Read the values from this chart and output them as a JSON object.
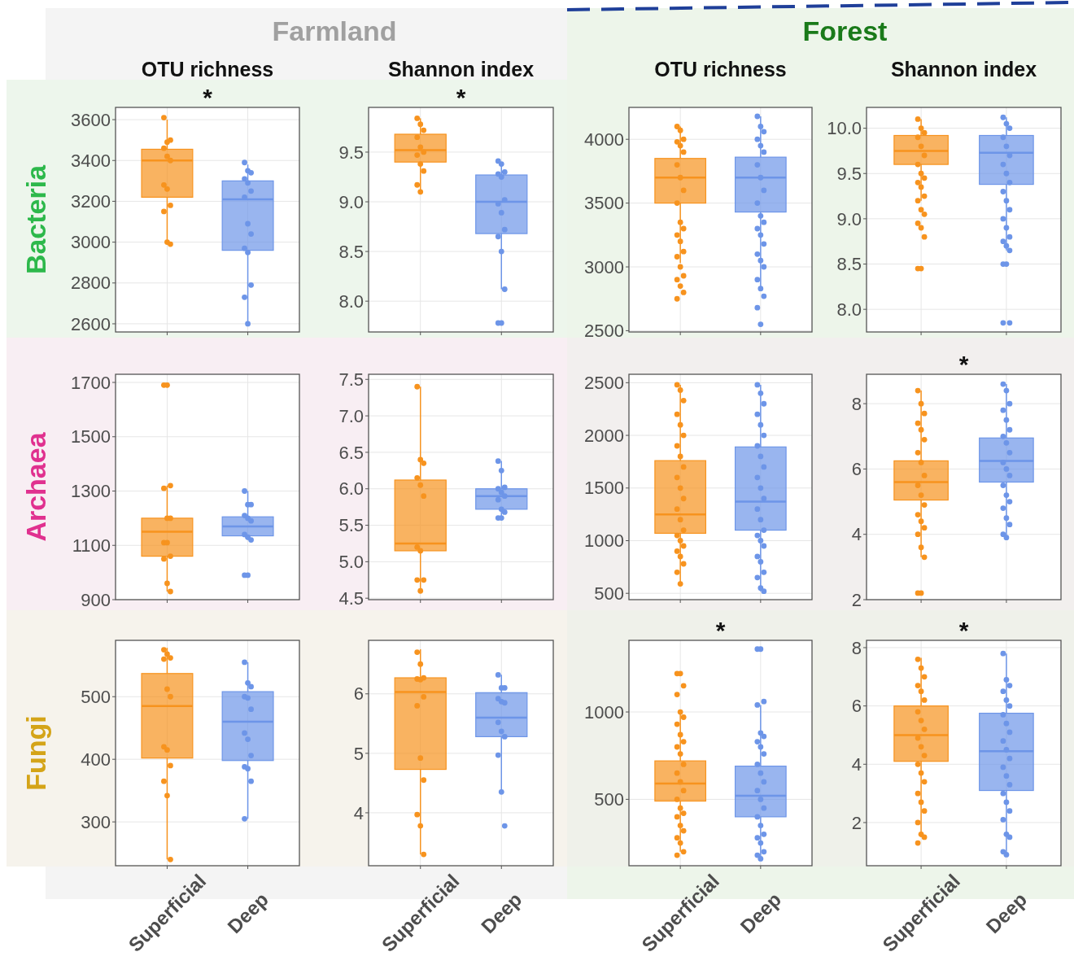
{
  "chart_data": [
    {
      "type": "box",
      "title": "OTU richness",
      "subtitle": "Farmland",
      "ylabel": "Bacteria",
      "categories": [
        "Superficial",
        "Deep"
      ],
      "ylim": [
        2560,
        3660
      ],
      "yticks": [
        2600,
        2800,
        3000,
        3200,
        3400,
        3600
      ],
      "grid": true,
      "tick_labels": "y",
      "annotations": [
        "*"
      ],
      "colors": [
        "#f7931e",
        "#6d95e8"
      ],
      "boxes": [
        {
          "low": 2990,
          "q1": 3220,
          "median": 3400,
          "q3": 3455,
          "high": 3600
        },
        {
          "low": 2600,
          "q1": 2960,
          "median": 3210,
          "q3": 3300,
          "high": 3380
        }
      ],
      "series": [
        {
          "type": "scatter",
          "color": "#f7931e",
          "x": [
            "Superficial",
            "Superficial",
            "Superficial",
            "Superficial",
            "Superficial",
            "Superficial",
            "Superficial",
            "Superficial",
            "Superficial",
            "Superficial",
            "Superficial",
            "Superficial"
          ],
          "values": [
            3610,
            3490,
            3500,
            3460,
            3420,
            3400,
            3280,
            3260,
            3180,
            3150,
            3000,
            2990
          ]
        },
        {
          "type": "scatter",
          "color": "#6d95e8",
          "x": [
            "Deep",
            "Deep",
            "Deep",
            "Deep",
            "Deep",
            "Deep",
            "Deep",
            "Deep",
            "Deep",
            "Deep",
            "Deep",
            "Deep",
            "Deep",
            "Deep"
          ],
          "values": [
            3390,
            3350,
            3340,
            3310,
            3290,
            3250,
            3220,
            3090,
            3040,
            2970,
            2950,
            2790,
            2730,
            2600
          ]
        }
      ]
    },
    {
      "type": "box",
      "title": "Shannon index",
      "categories": [
        "Superficial",
        "Deep"
      ],
      "ylim": [
        7.69,
        9.95
      ],
      "yticks": [
        {
          "value": 8,
          "label": "8.0"
        },
        8.5,
        {
          "value": 9,
          "label": "9.0"
        },
        9.5
      ],
      "grid": true,
      "tick_labels": "y",
      "annotations": [
        "*"
      ],
      "colors": [
        "#f7931e",
        "#6d95e8"
      ],
      "boxes": [
        {
          "low": 9.1,
          "q1": 9.4,
          "median": 9.52,
          "q3": 9.68,
          "high": 9.84
        },
        {
          "low": 8.12,
          "q1": 8.68,
          "median": 9.0,
          "q3": 9.27,
          "high": 9.38
        }
      ],
      "series": [
        {
          "type": "scatter",
          "color": "#f7931e",
          "x": [
            "Superficial",
            "Superficial",
            "Superficial",
            "Superficial",
            "Superficial",
            "Superficial",
            "Superficial",
            "Superficial",
            "Superficial",
            "Superficial",
            "Superficial"
          ],
          "values": [
            9.84,
            9.78,
            9.72,
            9.65,
            9.55,
            9.5,
            9.47,
            9.38,
            9.31,
            9.17,
            9.1
          ]
        },
        {
          "type": "scatter",
          "color": "#6d95e8",
          "x": [
            "Deep",
            "Deep",
            "Deep",
            "Deep",
            "Deep",
            "Deep",
            "Deep",
            "Deep",
            "Deep",
            "Deep",
            "Deep",
            "Deep",
            "Deep",
            "Deep"
          ],
          "values": [
            9.41,
            9.38,
            9.3,
            9.28,
            9.25,
            9.02,
            8.98,
            8.89,
            8.72,
            8.65,
            8.5,
            8.12,
            7.78,
            7.78
          ]
        }
      ]
    },
    {
      "type": "box",
      "title": "OTU richness",
      "subtitle": "Forest",
      "categories": [
        "Superficial",
        "Deep"
      ],
      "ylim": [
        2490,
        4250
      ],
      "yticks": [
        2500,
        3000,
        3500,
        4000
      ],
      "grid": true,
      "tick_labels": "y",
      "colors": [
        "#f7931e",
        "#6d95e8"
      ],
      "boxes": [
        {
          "low": 3030,
          "q1": 3500,
          "median": 3700,
          "q3": 3850,
          "high": 4100
        },
        {
          "low": 2830,
          "q1": 3430,
          "median": 3700,
          "q3": 3860,
          "high": 4180
        }
      ],
      "series": [
        {
          "type": "scatter",
          "color": "#f7931e",
          "x": [
            "Superficial",
            "Superficial",
            "Superficial",
            "Superficial",
            "Superficial",
            "Superficial",
            "Superficial",
            "Superficial",
            "Superficial",
            "Superficial",
            "Superficial",
            "Superficial",
            "Superficial",
            "Superficial",
            "Superficial",
            "Superficial",
            "Superficial",
            "Superficial",
            "Superficial",
            "Superficial",
            "Superficial",
            "Superficial"
          ],
          "values": [
            4100,
            4070,
            4000,
            3980,
            3950,
            3900,
            3800,
            3700,
            3600,
            3500,
            3350,
            3300,
            3250,
            3200,
            3120,
            3080,
            3000,
            2930,
            2900,
            2850,
            2800,
            2750
          ]
        },
        {
          "type": "scatter",
          "color": "#6d95e8",
          "x": [
            "Deep",
            "Deep",
            "Deep",
            "Deep",
            "Deep",
            "Deep",
            "Deep",
            "Deep",
            "Deep",
            "Deep",
            "Deep",
            "Deep",
            "Deep",
            "Deep",
            "Deep",
            "Deep",
            "Deep",
            "Deep",
            "Deep",
            "Deep",
            "Deep",
            "Deep",
            "Deep"
          ],
          "values": [
            4180,
            4100,
            4060,
            4000,
            3950,
            3900,
            3800,
            3700,
            3600,
            3500,
            3400,
            3350,
            3300,
            3250,
            3180,
            3100,
            3050,
            3000,
            2900,
            2830,
            2770,
            2680,
            2550
          ]
        }
      ]
    },
    {
      "type": "box",
      "title": "Shannon index",
      "categories": [
        "Superficial",
        "Deep"
      ],
      "ylim": [
        7.75,
        10.23
      ],
      "yticks": [
        {
          "value": 8,
          "label": "8.0"
        },
        8.5,
        {
          "value": 9,
          "label": "9.0"
        },
        9.5,
        {
          "value": 10,
          "label": "10.0"
        }
      ],
      "grid": true,
      "tick_labels": "y",
      "colors": [
        "#f7931e",
        "#6d95e8"
      ],
      "boxes": [
        {
          "low": 9.2,
          "q1": 9.6,
          "median": 9.75,
          "q3": 9.92,
          "high": 10.1
        },
        {
          "low": 8.65,
          "q1": 9.38,
          "median": 9.73,
          "q3": 9.92,
          "high": 10.12
        }
      ],
      "series": [
        {
          "type": "scatter",
          "color": "#f7931e",
          "x": [
            "Superficial",
            "Superficial",
            "Superficial",
            "Superficial",
            "Superficial",
            "Superficial",
            "Superficial",
            "Superficial",
            "Superficial",
            "Superficial",
            "Superficial",
            "Superficial",
            "Superficial",
            "Superficial",
            "Superficial",
            "Superficial",
            "Superficial",
            "Superficial",
            "Superficial",
            "Superficial"
          ],
          "values": [
            10.1,
            10.0,
            9.95,
            9.9,
            9.8,
            9.7,
            9.6,
            9.5,
            9.45,
            9.4,
            9.35,
            9.25,
            9.2,
            9.1,
            9.05,
            8.95,
            8.9,
            8.8,
            8.45,
            8.45
          ]
        },
        {
          "type": "scatter",
          "color": "#6d95e8",
          "x": [
            "Deep",
            "Deep",
            "Deep",
            "Deep",
            "Deep",
            "Deep",
            "Deep",
            "Deep",
            "Deep",
            "Deep",
            "Deep",
            "Deep",
            "Deep",
            "Deep",
            "Deep",
            "Deep",
            "Deep",
            "Deep",
            "Deep",
            "Deep",
            "Deep",
            "Deep"
          ],
          "values": [
            10.12,
            10.05,
            10.0,
            9.9,
            9.8,
            9.7,
            9.6,
            9.5,
            9.4,
            9.3,
            9.2,
            9.1,
            9.0,
            8.9,
            8.8,
            8.75,
            8.7,
            8.65,
            8.5,
            8.5,
            7.85,
            7.85
          ]
        }
      ]
    },
    {
      "type": "box",
      "ylabel": "Archaea",
      "categories": [
        "Superficial",
        "Deep"
      ],
      "ylim": [
        900,
        1730
      ],
      "yticks": [
        900,
        1100,
        1300,
        1500,
        1700
      ],
      "grid": true,
      "tick_labels": "y",
      "colors": [
        "#f7931e",
        "#6d95e8"
      ],
      "boxes": [
        {
          "low": 930,
          "q1": 1060,
          "median": 1150,
          "q3": 1200,
          "high": 1320
        },
        {
          "low": 1120,
          "q1": 1135,
          "median": 1170,
          "q3": 1205,
          "high": 1300
        }
      ],
      "series": [
        {
          "type": "scatter",
          "color": "#f7931e",
          "x": [
            "Superficial",
            "Superficial",
            "Superficial",
            "Superficial",
            "Superficial",
            "Superficial",
            "Superficial",
            "Superficial",
            "Superficial",
            "Superficial",
            "Superficial",
            "Superficial"
          ],
          "values": [
            1690,
            1690,
            1320,
            1310,
            1200,
            1200,
            1110,
            1110,
            1060,
            1050,
            960,
            930
          ]
        },
        {
          "type": "scatter",
          "color": "#6d95e8",
          "x": [
            "Deep",
            "Deep",
            "Deep",
            "Deep",
            "Deep",
            "Deep",
            "Deep",
            "Deep",
            "Deep",
            "Deep",
            "Deep"
          ],
          "values": [
            1300,
            1250,
            1250,
            1210,
            1200,
            1190,
            1140,
            1130,
            1120,
            990,
            990
          ]
        }
      ]
    },
    {
      "type": "box",
      "categories": [
        "Superficial",
        "Deep"
      ],
      "ylim": [
        4.48,
        7.57
      ],
      "yticks": [
        4.5,
        {
          "value": 5,
          "label": "5.0"
        },
        5.5,
        {
          "value": 6,
          "label": "6.0"
        },
        6.5,
        {
          "value": 7,
          "label": "7.0"
        },
        7.5
      ],
      "grid": true,
      "tick_labels": "y",
      "colors": [
        "#f7931e",
        "#6d95e8"
      ],
      "boxes": [
        {
          "low": 4.6,
          "q1": 5.15,
          "median": 5.25,
          "q3": 6.12,
          "high": 7.4
        },
        {
          "low": 5.6,
          "q1": 5.72,
          "median": 5.9,
          "q3": 6.0,
          "high": 6.38
        }
      ],
      "series": [
        {
          "type": "scatter",
          "color": "#f7931e",
          "x": [
            "Superficial",
            "Superficial",
            "Superficial",
            "Superficial",
            "Superficial",
            "Superficial",
            "Superficial",
            "Superficial",
            "Superficial",
            "Superficial",
            "Superficial"
          ],
          "values": [
            7.4,
            6.4,
            6.35,
            6.15,
            6.05,
            5.9,
            5.2,
            5.15,
            4.75,
            4.75,
            4.6
          ]
        },
        {
          "type": "scatter",
          "color": "#6d95e8",
          "x": [
            "Deep",
            "Deep",
            "Deep",
            "Deep",
            "Deep",
            "Deep",
            "Deep",
            "Deep",
            "Deep",
            "Deep",
            "Deep"
          ],
          "values": [
            6.38,
            6.25,
            6.02,
            6.0,
            5.95,
            5.9,
            5.85,
            5.72,
            5.68,
            5.6,
            5.6
          ]
        }
      ]
    },
    {
      "type": "box",
      "categories": [
        "Superficial",
        "Deep"
      ],
      "ylim": [
        440,
        2580
      ],
      "yticks": [
        500,
        1000,
        1500,
        2000,
        2500
      ],
      "grid": true,
      "tick_labels": "y",
      "colors": [
        "#f7931e",
        "#6d95e8"
      ],
      "boxes": [
        {
          "low": 590,
          "q1": 1070,
          "median": 1250,
          "q3": 1760,
          "high": 2480
        },
        {
          "low": 520,
          "q1": 1100,
          "median": 1370,
          "q3": 1890,
          "high": 2480
        }
      ],
      "series": [
        {
          "type": "scatter",
          "color": "#f7931e",
          "x": [
            "Superficial",
            "Superficial",
            "Superficial",
            "Superficial",
            "Superficial",
            "Superficial",
            "Superficial",
            "Superficial",
            "Superficial",
            "Superficial",
            "Superficial",
            "Superficial",
            "Superficial",
            "Superficial",
            "Superficial",
            "Superficial",
            "Superficial",
            "Superficial",
            "Superficial",
            "Superficial",
            "Superficial",
            "Superficial",
            "Superficial"
          ],
          "values": [
            2480,
            2430,
            2330,
            2200,
            2100,
            2000,
            1900,
            1800,
            1700,
            1600,
            1500,
            1400,
            1300,
            1200,
            1100,
            1050,
            1000,
            950,
            900,
            850,
            780,
            700,
            590
          ]
        },
        {
          "type": "scatter",
          "color": "#6d95e8",
          "x": [
            "Deep",
            "Deep",
            "Deep",
            "Deep",
            "Deep",
            "Deep",
            "Deep",
            "Deep",
            "Deep",
            "Deep",
            "Deep",
            "Deep",
            "Deep",
            "Deep",
            "Deep",
            "Deep",
            "Deep",
            "Deep",
            "Deep",
            "Deep",
            "Deep",
            "Deep",
            "Deep",
            "Deep"
          ],
          "values": [
            2480,
            2400,
            2300,
            2200,
            2100,
            2000,
            1900,
            1800,
            1700,
            1600,
            1500,
            1400,
            1300,
            1200,
            1100,
            1050,
            1000,
            950,
            850,
            800,
            700,
            650,
            550,
            520
          ]
        }
      ]
    },
    {
      "type": "box",
      "categories": [
        "Superficial",
        "Deep"
      ],
      "ylim": [
        2,
        8.9
      ],
      "yticks": [
        2,
        4,
        6,
        8
      ],
      "grid": true,
      "tick_labels": "y",
      "annotations": [
        "*"
      ],
      "colors": [
        "#f7931e",
        "#6d95e8"
      ],
      "boxes": [
        {
          "low": 3.3,
          "q1": 5.05,
          "median": 5.6,
          "q3": 6.25,
          "high": 8.4
        },
        {
          "low": 3.9,
          "q1": 5.6,
          "median": 6.25,
          "q3": 6.95,
          "high": 8.6
        }
      ],
      "series": [
        {
          "type": "scatter",
          "color": "#f7931e",
          "x": [
            "Superficial",
            "Superficial",
            "Superficial",
            "Superficial",
            "Superficial",
            "Superficial",
            "Superficial",
            "Superficial",
            "Superficial",
            "Superficial",
            "Superficial",
            "Superficial",
            "Superficial",
            "Superficial",
            "Superficial",
            "Superficial",
            "Superficial",
            "Superficial",
            "Superficial",
            "Superficial"
          ],
          "values": [
            8.4,
            8.0,
            7.7,
            7.4,
            7.2,
            6.9,
            6.5,
            6.2,
            5.8,
            5.5,
            5.2,
            4.9,
            4.6,
            4.4,
            4.2,
            4.0,
            3.6,
            3.3,
            2.2,
            2.2
          ]
        },
        {
          "type": "scatter",
          "color": "#6d95e8",
          "x": [
            "Deep",
            "Deep",
            "Deep",
            "Deep",
            "Deep",
            "Deep",
            "Deep",
            "Deep",
            "Deep",
            "Deep",
            "Deep",
            "Deep",
            "Deep",
            "Deep",
            "Deep",
            "Deep",
            "Deep",
            "Deep",
            "Deep",
            "Deep"
          ],
          "values": [
            8.6,
            8.4,
            8.0,
            7.8,
            7.5,
            7.2,
            7.0,
            6.8,
            6.5,
            6.2,
            6.0,
            5.8,
            5.5,
            5.2,
            5.0,
            4.8,
            4.5,
            4.3,
            4.0,
            3.9
          ]
        }
      ]
    },
    {
      "type": "box",
      "ylabel": "Fungi",
      "categories": [
        "Superficial",
        "Deep"
      ],
      "ylim": [
        230,
        590
      ],
      "yticks": [
        300,
        400,
        500
      ],
      "grid": true,
      "colors": [
        "#f7931e",
        "#6d95e8"
      ],
      "boxes": [
        {
          "low": 240,
          "q1": 402,
          "median": 485,
          "q3": 537,
          "high": 578
        },
        {
          "low": 305,
          "q1": 398,
          "median": 460,
          "q3": 508,
          "high": 555
        }
      ],
      "series": [
        {
          "type": "scatter",
          "color": "#f7931e",
          "x": [
            "Superficial",
            "Superficial",
            "Superficial",
            "Superficial",
            "Superficial",
            "Superficial",
            "Superficial",
            "Superficial",
            "Superficial",
            "Superficial",
            "Superficial",
            "Superficial"
          ],
          "values": [
            575,
            568,
            562,
            560,
            512,
            500,
            420,
            415,
            390,
            365,
            342,
            240
          ]
        },
        {
          "type": "scatter",
          "color": "#6d95e8",
          "x": [
            "Deep",
            "Deep",
            "Deep",
            "Deep",
            "Deep",
            "Deep",
            "Deep",
            "Deep",
            "Deep",
            "Deep",
            "Deep",
            "Deep",
            "Deep"
          ],
          "values": [
            555,
            522,
            516,
            500,
            498,
            480,
            442,
            432,
            406,
            388,
            385,
            365,
            305
          ]
        }
      ]
    },
    {
      "type": "box",
      "categories": [
        "Superficial",
        "Deep"
      ],
      "ylim": [
        3.11,
        6.9
      ],
      "yticks": [
        4,
        5,
        6
      ],
      "grid": true,
      "colors": [
        "#f7931e",
        "#6d95e8"
      ],
      "boxes": [
        {
          "low": 3.3,
          "q1": 4.73,
          "median": 6.03,
          "q3": 6.27,
          "high": 6.75
        },
        {
          "low": 4.35,
          "q1": 5.28,
          "median": 5.6,
          "q3": 6.02,
          "high": 6.32
        }
      ],
      "series": [
        {
          "type": "scatter",
          "color": "#f7931e",
          "x": [
            "Superficial",
            "Superficial",
            "Superficial",
            "Superficial",
            "Superficial",
            "Superficial",
            "Superficial",
            "Superficial",
            "Superficial",
            "Superficial",
            "Superficial",
            "Superficial"
          ],
          "values": [
            6.7,
            6.5,
            6.27,
            6.25,
            6.24,
            5.95,
            5.8,
            4.92,
            4.55,
            3.97,
            3.78,
            3.3
          ]
        },
        {
          "type": "scatter",
          "color": "#6d95e8",
          "x": [
            "Deep",
            "Deep",
            "Deep",
            "Deep",
            "Deep",
            "Deep",
            "Deep",
            "Deep",
            "Deep",
            "Deep",
            "Deep",
            "Deep"
          ],
          "values": [
            6.32,
            6.1,
            6.1,
            5.92,
            5.87,
            5.85,
            5.52,
            5.37,
            5.28,
            4.97,
            4.35,
            3.78
          ]
        }
      ]
    },
    {
      "type": "box",
      "categories": [
        "Superficial",
        "Deep"
      ],
      "ylim": [
        120,
        1410
      ],
      "yticks": [
        500,
        1000
      ],
      "grid": true,
      "annotations": [
        "*"
      ],
      "colors": [
        "#f7931e",
        "#6d95e8"
      ],
      "boxes": [
        {
          "low": 200,
          "q1": 490,
          "median": 590,
          "q3": 720,
          "high": 1000
        },
        {
          "low": 160,
          "q1": 400,
          "median": 520,
          "q3": 690,
          "high": 1040
        }
      ],
      "series": [
        {
          "type": "scatter",
          "color": "#f7931e",
          "x": [
            "Superficial",
            "Superficial",
            "Superficial",
            "Superficial",
            "Superficial",
            "Superficial",
            "Superficial",
            "Superficial",
            "Superficial",
            "Superficial",
            "Superficial",
            "Superficial",
            "Superficial",
            "Superficial",
            "Superficial",
            "Superficial",
            "Superficial",
            "Superficial",
            "Superficial",
            "Superficial",
            "Superficial",
            "Superficial",
            "Superficial",
            "Superficial",
            "Superficial"
          ],
          "values": [
            1220,
            1220,
            1150,
            1100,
            1000,
            970,
            930,
            870,
            830,
            800,
            760,
            700,
            650,
            600,
            550,
            500,
            450,
            420,
            400,
            350,
            320,
            280,
            250,
            200,
            180
          ]
        },
        {
          "type": "scatter",
          "color": "#6d95e8",
          "x": [
            "Deep",
            "Deep",
            "Deep",
            "Deep",
            "Deep",
            "Deep",
            "Deep",
            "Deep",
            "Deep",
            "Deep",
            "Deep",
            "Deep",
            "Deep",
            "Deep",
            "Deep",
            "Deep",
            "Deep",
            "Deep",
            "Deep",
            "Deep",
            "Deep",
            "Deep",
            "Deep"
          ],
          "values": [
            1360,
            1360,
            1060,
            1040,
            880,
            860,
            830,
            800,
            760,
            700,
            650,
            600,
            550,
            500,
            450,
            400,
            350,
            300,
            280,
            250,
            200,
            180,
            160
          ]
        }
      ]
    },
    {
      "type": "box",
      "categories": [
        "Superficial",
        "Deep"
      ],
      "ylim": [
        0.52,
        8.25
      ],
      "yticks": [
        2,
        4,
        6,
        8
      ],
      "grid": true,
      "annotations": [
        "*"
      ],
      "colors": [
        "#f7931e",
        "#6d95e8"
      ],
      "boxes": [
        {
          "low": 1.5,
          "q1": 4.1,
          "median": 5.0,
          "q3": 6.0,
          "high": 7.65
        },
        {
          "low": 0.9,
          "q1": 3.1,
          "median": 4.45,
          "q3": 5.75,
          "high": 7.8
        }
      ],
      "series": [
        {
          "type": "scatter",
          "color": "#f7931e",
          "x": [
            "Superficial",
            "Superficial",
            "Superficial",
            "Superficial",
            "Superficial",
            "Superficial",
            "Superficial",
            "Superficial",
            "Superficial",
            "Superficial",
            "Superficial",
            "Superficial",
            "Superficial",
            "Superficial",
            "Superficial",
            "Superficial",
            "Superficial",
            "Superficial",
            "Superficial",
            "Superficial",
            "Superficial",
            "Superficial"
          ],
          "values": [
            7.6,
            7.3,
            7.0,
            6.7,
            6.5,
            6.2,
            5.8,
            5.5,
            5.2,
            4.9,
            4.6,
            4.3,
            4.0,
            3.7,
            3.4,
            3.0,
            2.7,
            2.4,
            2.0,
            1.6,
            1.5,
            1.3
          ]
        },
        {
          "type": "scatter",
          "color": "#6d95e8",
          "x": [
            "Deep",
            "Deep",
            "Deep",
            "Deep",
            "Deep",
            "Deep",
            "Deep",
            "Deep",
            "Deep",
            "Deep",
            "Deep",
            "Deep",
            "Deep",
            "Deep",
            "Deep",
            "Deep",
            "Deep",
            "Deep",
            "Deep",
            "Deep",
            "Deep",
            "Deep",
            "Deep"
          ],
          "values": [
            7.8,
            6.9,
            6.7,
            6.5,
            6.2,
            6.0,
            5.7,
            5.4,
            5.1,
            4.8,
            4.5,
            4.2,
            3.9,
            3.6,
            3.3,
            3.0,
            2.7,
            2.4,
            2.1,
            1.6,
            1.5,
            1.0,
            0.9
          ]
        }
      ]
    }
  ]
}
